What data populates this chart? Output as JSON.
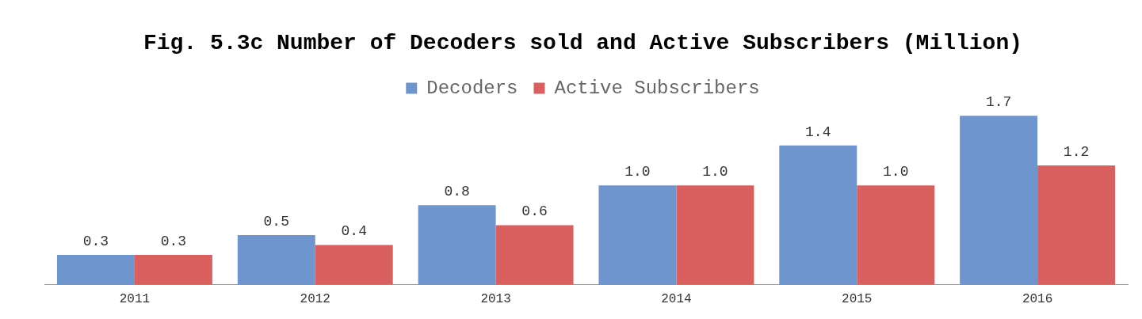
{
  "chart_data": {
    "type": "bar",
    "title": "Fig. 5.3c Number of Decoders sold and Active Subscribers (Million)",
    "categories": [
      "2011",
      "2012",
      "2013",
      "2014",
      "2015",
      "2016"
    ],
    "series": [
      {
        "name": "Decoders",
        "color": "#6f95cf",
        "values": [
          0.3,
          0.5,
          0.8,
          1,
          1.4,
          1.7
        ],
        "value_labels": [
          "0.3",
          "0.5",
          "0.8",
          "1.0",
          "1.4",
          "1.7"
        ]
      },
      {
        "name": "Active Subscribers",
        "color": "#d9605e",
        "values": [
          0.3,
          0.4,
          0.6,
          1,
          1,
          1.2
        ],
        "value_labels": [
          "0.3",
          "0.4",
          "0.6",
          "1.0",
          "1.0",
          "1.2"
        ]
      }
    ],
    "legend": "top",
    "grid": false
  }
}
